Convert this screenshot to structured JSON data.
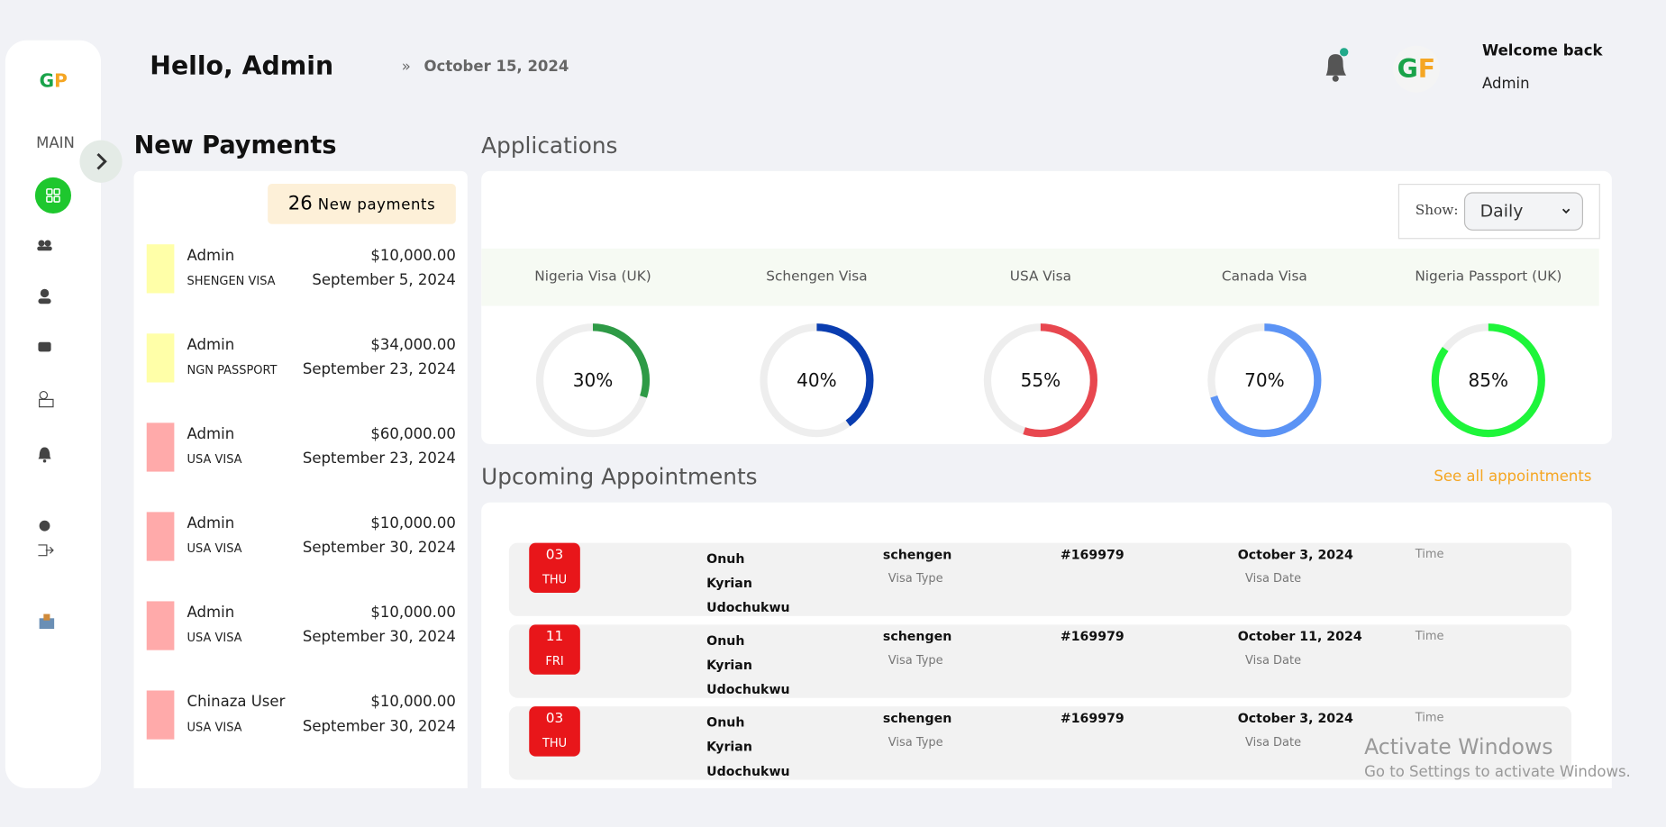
{
  "header": {
    "greeting": "Hello, Admin",
    "date": "October 15, 2024",
    "welcome": "Welcome back",
    "user": "Admin"
  },
  "sidebar": {
    "section": "MAIN"
  },
  "payments": {
    "title": "New Payments",
    "count": "26",
    "count_label": "New payments",
    "items": [
      {
        "name": "Admin",
        "type": "SHENGEN VISA",
        "amount": "$10,000.00",
        "date": "September 5, 2024",
        "color": "#ffffa8"
      },
      {
        "name": "Admin",
        "type": "NGN PASSPORT",
        "amount": "$34,000.00",
        "date": "September 23, 2024",
        "color": "#ffffa8"
      },
      {
        "name": "Admin",
        "type": "USA VISA",
        "amount": "$60,000.00",
        "date": "September 23, 2024",
        "color": "#ffaaaa"
      },
      {
        "name": "Admin",
        "type": "USA VISA",
        "amount": "$10,000.00",
        "date": "September 30, 2024",
        "color": "#ffaaaa"
      },
      {
        "name": "Admin",
        "type": "USA VISA",
        "amount": "$10,000.00",
        "date": "September 30, 2024",
        "color": "#ffaaaa"
      },
      {
        "name": "Chinaza User",
        "type": "USA VISA",
        "amount": "$10,000.00",
        "date": "September 30, 2024",
        "color": "#ffaaaa"
      }
    ]
  },
  "applications": {
    "title": "Applications",
    "show_label": "Show:",
    "show_value": "Daily",
    "items": [
      {
        "name": "Nigeria Visa (UK)",
        "value": 30,
        "label": "30%",
        "color": "#2e9a46"
      },
      {
        "name": "Schengen Visa",
        "value": 40,
        "label": "40%",
        "color": "#0a3db0"
      },
      {
        "name": "USA Visa",
        "value": 55,
        "label": "55%",
        "color": "#e8474f"
      },
      {
        "name": "Canada Visa",
        "value": 70,
        "label": "70%",
        "color": "#5b93f5"
      },
      {
        "name": "Nigeria Passport (UK)",
        "value": 85,
        "label": "85%",
        "color": "#1ef53a"
      }
    ]
  },
  "appointments": {
    "title": "Upcoming Appointments",
    "link": "See all appointments",
    "rows": [
      {
        "day": "03",
        "weekday": "THU",
        "name": "Onuh Kyrian Udochukwu",
        "visa": "schengen",
        "visa_label": "Visa Type",
        "id": "#169979",
        "date": "October 3, 2024",
        "date_label": "Visa Date",
        "time_label": "Time"
      },
      {
        "day": "11",
        "weekday": "FRI",
        "name": "Onuh Kyrian Udochukwu",
        "visa": "schengen",
        "visa_label": "Visa Type",
        "id": "#169979",
        "date": "October 11, 2024",
        "date_label": "Visa Date",
        "time_label": "Time"
      },
      {
        "day": "03",
        "weekday": "THU",
        "name": "Onuh Kyrian Udochukwu",
        "visa": "schengen",
        "visa_label": "Visa Type",
        "id": "#169979",
        "date": "October 3, 2024",
        "date_label": "Visa Date",
        "time_label": "Time"
      }
    ]
  },
  "watermark": {
    "title": "Activate Windows",
    "text": "Go to Settings to activate Windows."
  }
}
